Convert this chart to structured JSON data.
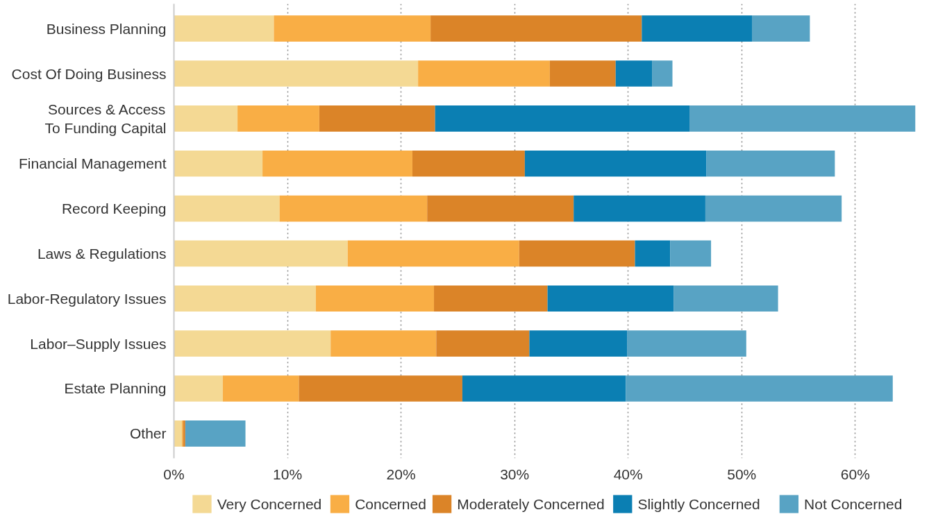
{
  "chart_data": {
    "type": "bar",
    "orientation": "horizontal",
    "stacked": true,
    "categories": [
      "Business Planning",
      "Cost Of Doing Business",
      "Sources & Access\nTo Funding Capital",
      "Financial Management",
      "Record Keeping",
      "Laws & Regulations",
      "Labor-Regulatory Issues",
      "Labor–Supply Issues",
      "Estate Planning",
      "Other"
    ],
    "series": [
      {
        "name": "Very Concerned",
        "color": "#f4d994",
        "values": [
          8.8,
          21.5,
          5.6,
          7.8,
          9.3,
          15.3,
          12.5,
          13.8,
          4.3,
          0.7
        ]
      },
      {
        "name": "Concerned",
        "color": "#f9ae45",
        "values": [
          13.8,
          11.6,
          7.2,
          13.2,
          13.0,
          15.1,
          10.4,
          9.3,
          6.7,
          0.1
        ]
      },
      {
        "name": "Moderately Concerned",
        "color": "#db8428",
        "values": [
          18.6,
          5.8,
          10.2,
          9.9,
          12.9,
          10.2,
          10.0,
          8.2,
          14.4,
          0.2
        ]
      },
      {
        "name": "Slightly Concerned",
        "color": "#0b7fb3",
        "values": [
          9.7,
          3.2,
          22.4,
          16.0,
          11.6,
          3.1,
          11.1,
          8.6,
          14.4,
          0
        ]
      },
      {
        "name": "Not Concerned",
        "color": "#58a3c4",
        "values": [
          5.1,
          1.8,
          19.9,
          11.3,
          12.0,
          3.6,
          9.2,
          10.5,
          23.5,
          5.3
        ]
      }
    ],
    "xlim": [
      0,
      65.3
    ],
    "xticks": [
      {
        "value": 0,
        "label": "0%"
      },
      {
        "value": 10,
        "label": "10%"
      },
      {
        "value": 20,
        "label": "20%"
      },
      {
        "value": 30,
        "label": "30%"
      },
      {
        "value": 40,
        "label": "40%"
      },
      {
        "value": 50,
        "label": "50%"
      },
      {
        "value": 60,
        "label": "60%"
      }
    ],
    "grid": "x",
    "legend": "bottom"
  }
}
